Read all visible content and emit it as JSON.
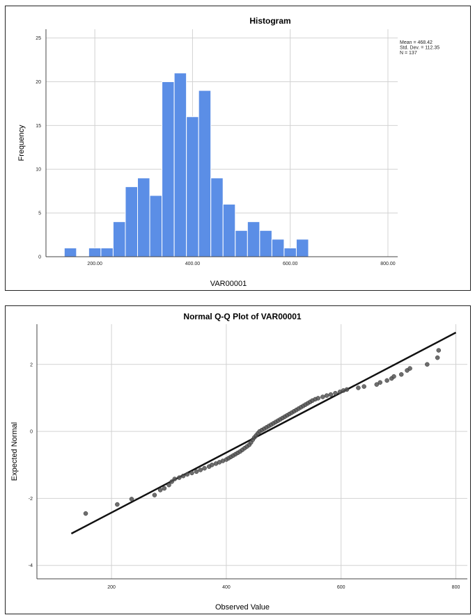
{
  "chart_data": [
    {
      "type": "bar",
      "title": "Histogram",
      "xlabel": "VAR00001",
      "ylabel": "Frequency",
      "bar_color": "#5b8ee6",
      "bin_start": 137.5,
      "bin_width": 25,
      "values": [
        1,
        0,
        1,
        1,
        4,
        8,
        9,
        7,
        20,
        21,
        16,
        19,
        9,
        6,
        3,
        4,
        3,
        2,
        1,
        2
      ],
      "xlim": [
        100,
        820
      ],
      "ylim": [
        0,
        26
      ],
      "x_ticks": [
        200,
        400,
        600,
        800
      ],
      "x_tick_labels": [
        "200.00",
        "400.00",
        "600.00",
        "800.00"
      ],
      "y_ticks": [
        0,
        5,
        10,
        15,
        20,
        25
      ],
      "y_tick_labels": [
        "0",
        "5",
        "10",
        "15",
        "20",
        "25"
      ],
      "stats": [
        "Mean = 468.42",
        "Std. Dev. = 112.35",
        "N = 137"
      ],
      "grid": true
    },
    {
      "type": "scatter",
      "title": "Normal Q-Q Plot of VAR00001",
      "xlabel": "Observed Value",
      "ylabel": "Expected Normal",
      "point_color": "#555555",
      "line_color": "#111111",
      "xlim": [
        70,
        820
      ],
      "ylim": [
        -4.4,
        3.2
      ],
      "x_ticks": [
        200,
        400,
        600,
        800
      ],
      "x_tick_labels": [
        "200",
        "400",
        "600",
        "800"
      ],
      "y_ticks": [
        -4,
        -2,
        0,
        2
      ],
      "y_tick_labels": [
        "-4",
        "-2",
        "0",
        "2"
      ],
      "reference_line": [
        [
          130,
          -3.05
        ],
        [
          800,
          2.95
        ]
      ],
      "points": [
        [
          155,
          -2.45
        ],
        [
          210,
          -2.18
        ],
        [
          235,
          -2.02
        ],
        [
          275,
          -1.9
        ],
        [
          285,
          -1.75
        ],
        [
          292,
          -1.7
        ],
        [
          300,
          -1.6
        ],
        [
          305,
          -1.5
        ],
        [
          310,
          -1.42
        ],
        [
          318,
          -1.38
        ],
        [
          325,
          -1.33
        ],
        [
          332,
          -1.28
        ],
        [
          340,
          -1.24
        ],
        [
          348,
          -1.2
        ],
        [
          355,
          -1.15
        ],
        [
          362,
          -1.1
        ],
        [
          370,
          -1.05
        ],
        [
          375,
          -1.0
        ],
        [
          382,
          -0.96
        ],
        [
          388,
          -0.92
        ],
        [
          394,
          -0.88
        ],
        [
          400,
          -0.84
        ],
        [
          404,
          -0.8
        ],
        [
          408,
          -0.76
        ],
        [
          412,
          -0.72
        ],
        [
          416,
          -0.68
        ],
        [
          420,
          -0.64
        ],
        [
          424,
          -0.6
        ],
        [
          428,
          -0.55
        ],
        [
          432,
          -0.5
        ],
        [
          436,
          -0.45
        ],
        [
          440,
          -0.4
        ],
        [
          443,
          -0.33
        ],
        [
          446,
          -0.25
        ],
        [
          449,
          -0.18
        ],
        [
          452,
          -0.12
        ],
        [
          455,
          -0.06
        ],
        [
          458,
          0.0
        ],
        [
          462,
          0.04
        ],
        [
          466,
          0.08
        ],
        [
          470,
          0.12
        ],
        [
          474,
          0.16
        ],
        [
          478,
          0.2
        ],
        [
          482,
          0.24
        ],
        [
          486,
          0.28
        ],
        [
          490,
          0.32
        ],
        [
          494,
          0.36
        ],
        [
          498,
          0.4
        ],
        [
          502,
          0.44
        ],
        [
          506,
          0.48
        ],
        [
          510,
          0.52
        ],
        [
          514,
          0.56
        ],
        [
          518,
          0.6
        ],
        [
          522,
          0.64
        ],
        [
          526,
          0.68
        ],
        [
          530,
          0.72
        ],
        [
          534,
          0.76
        ],
        [
          538,
          0.8
        ],
        [
          542,
          0.84
        ],
        [
          546,
          0.88
        ],
        [
          550,
          0.92
        ],
        [
          555,
          0.96
        ],
        [
          560,
          0.99
        ],
        [
          568,
          1.03
        ],
        [
          575,
          1.07
        ],
        [
          582,
          1.1
        ],
        [
          590,
          1.14
        ],
        [
          598,
          1.18
        ],
        [
          604,
          1.22
        ],
        [
          610,
          1.25
        ],
        [
          630,
          1.3
        ],
        [
          640,
          1.34
        ],
        [
          662,
          1.4
        ],
        [
          668,
          1.46
        ],
        [
          680,
          1.52
        ],
        [
          688,
          1.58
        ],
        [
          692,
          1.64
        ],
        [
          705,
          1.7
        ],
        [
          715,
          1.82
        ],
        [
          720,
          1.88
        ],
        [
          750,
          2.0
        ],
        [
          768,
          2.2
        ],
        [
          770,
          2.42
        ]
      ],
      "grid": true
    }
  ]
}
